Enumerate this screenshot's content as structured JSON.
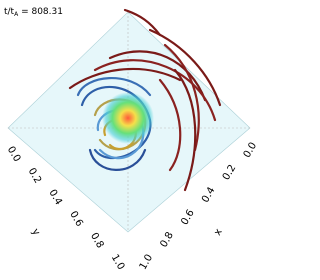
{
  "title": {
    "prefix": "t/t",
    "sub": "A",
    "suffix": " = 808.31"
  },
  "axes": {
    "y": {
      "label": "y",
      "ticks": [
        "0.0",
        "0.2",
        "0.4",
        "0.6",
        "0.8",
        "1.0"
      ]
    },
    "x": {
      "label": "x",
      "ticks": [
        "0.0",
        "0.2",
        "0.4",
        "0.6",
        "0.8",
        "1.0"
      ]
    }
  }
}
